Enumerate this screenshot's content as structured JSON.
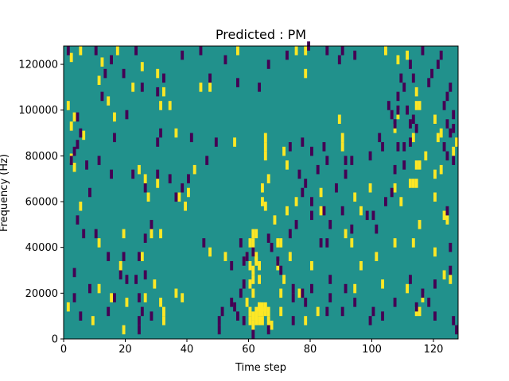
{
  "chart_data": {
    "type": "heatmap",
    "title": "Predicted : PM",
    "xlabel": "Time step",
    "ylabel": "Frequency (Hz)",
    "xlim": [
      0,
      128
    ],
    "ylim": [
      0,
      128000
    ],
    "xticks": [
      0,
      20,
      40,
      60,
      80,
      100,
      120
    ],
    "yticks": [
      0,
      20000,
      40000,
      60000,
      80000,
      100000,
      120000
    ],
    "grid": false,
    "colors": {
      "background": "#21918c",
      "high": "#fde725",
      "low": "#440154"
    },
    "cell_size": {
      "time": 1,
      "freq": 4000
    },
    "cells_high": [
      [
        2,
        121000
      ],
      [
        5,
        124000
      ],
      [
        12,
        119000
      ],
      [
        11,
        111000
      ],
      [
        1,
        100000
      ],
      [
        2,
        91000
      ],
      [
        3,
        95000
      ],
      [
        6,
        87000
      ],
      [
        2,
        77000
      ],
      [
        3,
        73000
      ],
      [
        5,
        56000
      ],
      [
        17,
        124000
      ],
      [
        14,
        102000
      ],
      [
        16,
        95000
      ],
      [
        22,
        108000
      ],
      [
        25,
        117000
      ],
      [
        30,
        114000
      ],
      [
        32,
        106000
      ],
      [
        31,
        100000
      ],
      [
        34,
        100000
      ],
      [
        36,
        88000
      ],
      [
        24,
        72000
      ],
      [
        26,
        68000
      ],
      [
        30,
        66000
      ],
      [
        39,
        56000
      ],
      [
        40,
        62000
      ],
      [
        42,
        72000
      ],
      [
        37,
        60000
      ],
      [
        27,
        60000
      ],
      [
        19,
        44000
      ],
      [
        28,
        44000
      ],
      [
        31,
        44000
      ],
      [
        25,
        34000
      ],
      [
        18,
        30000
      ],
      [
        11,
        40000
      ],
      [
        11,
        20000
      ],
      [
        15,
        16000
      ],
      [
        20,
        14000
      ],
      [
        26,
        16000
      ],
      [
        29,
        22000
      ],
      [
        31,
        14000
      ],
      [
        36,
        18000
      ],
      [
        38,
        16000
      ],
      [
        32,
        10000
      ],
      [
        32,
        6000
      ],
      [
        19,
        2000
      ],
      [
        9,
        6000
      ],
      [
        1,
        12000
      ],
      [
        44,
        108000
      ],
      [
        47,
        108000
      ],
      [
        56,
        124000
      ],
      [
        55,
        84000
      ],
      [
        47,
        36000
      ],
      [
        52,
        34000
      ],
      [
        59,
        34000
      ],
      [
        60,
        30000
      ],
      [
        62,
        34000
      ],
      [
        61,
        28000
      ],
      [
        60,
        22000
      ],
      [
        61,
        18000
      ],
      [
        59,
        14000
      ],
      [
        62,
        10000
      ],
      [
        63,
        12000
      ],
      [
        60,
        6000
      ],
      [
        62,
        6000
      ],
      [
        63,
        6000
      ],
      [
        64,
        6000
      ],
      [
        61,
        4000
      ],
      [
        61,
        8000
      ],
      [
        62,
        8000
      ],
      [
        60,
        10000
      ],
      [
        63,
        10000
      ],
      [
        64,
        10000
      ],
      [
        65,
        10000
      ],
      [
        66,
        10000
      ],
      [
        63,
        12000
      ],
      [
        64,
        12000
      ],
      [
        65,
        12000
      ],
      [
        60,
        40000
      ],
      [
        61,
        40000
      ],
      [
        61,
        44000
      ],
      [
        62,
        44000
      ],
      [
        61,
        36000
      ],
      [
        62,
        32000
      ],
      [
        63,
        24000
      ],
      [
        63,
        30000
      ],
      [
        61,
        24000
      ],
      [
        65,
        86000
      ],
      [
        65,
        82000
      ],
      [
        65,
        78000
      ],
      [
        66,
        68000
      ],
      [
        64,
        64000
      ],
      [
        64,
        58000
      ],
      [
        65,
        56000
      ],
      [
        68,
        50000
      ],
      [
        69,
        40000
      ],
      [
        70,
        40000
      ],
      [
        69,
        30000
      ],
      [
        71,
        24000
      ],
      [
        70,
        18000
      ],
      [
        70,
        10000
      ],
      [
        66,
        6000
      ],
      [
        67,
        4000
      ],
      [
        78,
        114000
      ],
      [
        78,
        124000
      ],
      [
        75,
        124000
      ],
      [
        76,
        18000
      ],
      [
        78,
        6000
      ],
      [
        82,
        10000
      ],
      [
        80,
        30000
      ],
      [
        73,
        34000
      ],
      [
        83,
        54000
      ],
      [
        72,
        54000
      ],
      [
        71,
        80000
      ],
      [
        72,
        74000
      ],
      [
        75,
        58000
      ],
      [
        83,
        62000
      ],
      [
        90,
        86000
      ],
      [
        89,
        94000
      ],
      [
        90,
        82000
      ],
      [
        94,
        60000
      ],
      [
        99,
        64000
      ],
      [
        91,
        44000
      ],
      [
        96,
        54000
      ],
      [
        93,
        40000
      ],
      [
        96,
        30000
      ],
      [
        94,
        20000
      ],
      [
        104,
        124000
      ],
      [
        107,
        64000
      ],
      [
        111,
        122000
      ],
      [
        108,
        120000
      ],
      [
        108,
        96000
      ],
      [
        107,
        90000
      ],
      [
        114,
        106000
      ],
      [
        114,
        100000
      ],
      [
        115,
        100000
      ],
      [
        114,
        74000
      ],
      [
        115,
        74000
      ],
      [
        113,
        66000
      ],
      [
        114,
        66000
      ],
      [
        117,
        78000
      ],
      [
        121,
        86000
      ],
      [
        120,
        94000
      ],
      [
        122,
        88000
      ],
      [
        122,
        72000
      ],
      [
        120,
        70000
      ],
      [
        120,
        60000
      ],
      [
        123,
        52000
      ],
      [
        113,
        40000
      ],
      [
        114,
        10000
      ],
      [
        115,
        10000
      ],
      [
        116,
        16000
      ],
      [
        111,
        20000
      ],
      [
        103,
        22000
      ],
      [
        101,
        34000
      ],
      [
        107,
        40000
      ],
      [
        109,
        58000
      ],
      [
        112,
        66000
      ],
      [
        113,
        86000
      ],
      [
        115,
        48000
      ],
      [
        120,
        36000
      ],
      [
        123,
        26000
      ],
      [
        125,
        24000
      ],
      [
        124,
        50000
      ],
      [
        126,
        80000
      ],
      [
        127,
        84000
      ]
    ],
    "cells_low": [
      [
        1,
        124000
      ],
      [
        10,
        124000
      ],
      [
        15,
        120000
      ],
      [
        12,
        104000
      ],
      [
        4,
        95000
      ],
      [
        5,
        88000
      ],
      [
        4,
        83000
      ],
      [
        3,
        80000
      ],
      [
        2,
        76000
      ],
      [
        7,
        74000
      ],
      [
        3,
        27000
      ],
      [
        3,
        16000
      ],
      [
        5,
        8000
      ],
      [
        8,
        20000
      ],
      [
        14,
        10000
      ],
      [
        16,
        16000
      ],
      [
        20,
        24000
      ],
      [
        24,
        16000
      ],
      [
        25,
        10000
      ],
      [
        28,
        8000
      ],
      [
        24,
        6000
      ],
      [
        24,
        2000
      ],
      [
        19,
        114000
      ],
      [
        23,
        124000
      ],
      [
        25,
        108000
      ],
      [
        32,
        112000
      ],
      [
        30,
        106000
      ],
      [
        31,
        88000
      ],
      [
        30,
        84000
      ],
      [
        22,
        70000
      ],
      [
        26,
        64000
      ],
      [
        30,
        70000
      ],
      [
        34,
        68000
      ],
      [
        28,
        48000
      ],
      [
        26,
        42000
      ],
      [
        24,
        34000
      ],
      [
        23,
        24000
      ],
      [
        26,
        26000
      ],
      [
        19,
        34000
      ],
      [
        13,
        114000
      ],
      [
        20,
        96000
      ],
      [
        16,
        86000
      ],
      [
        11,
        76000
      ],
      [
        15,
        70000
      ],
      [
        8,
        62000
      ],
      [
        4,
        50000
      ],
      [
        6,
        44000
      ],
      [
        10,
        44000
      ],
      [
        14,
        34000
      ],
      [
        18,
        26000
      ],
      [
        38,
        122000
      ],
      [
        44,
        124000
      ],
      [
        47,
        112000
      ],
      [
        52,
        120000
      ],
      [
        56,
        110000
      ],
      [
        41,
        86000
      ],
      [
        46,
        76000
      ],
      [
        49,
        84000
      ],
      [
        36,
        60000
      ],
      [
        38,
        64000
      ],
      [
        40,
        68000
      ],
      [
        45,
        40000
      ],
      [
        54,
        30000
      ],
      [
        57,
        18000
      ],
      [
        50,
        6000
      ],
      [
        58,
        22000
      ],
      [
        54,
        14000
      ],
      [
        55,
        12000
      ],
      [
        56,
        8000
      ],
      [
        51,
        10000
      ],
      [
        50,
        2000
      ],
      [
        58,
        32000
      ],
      [
        57,
        40000
      ],
      [
        59,
        34000
      ],
      [
        61,
        36000
      ],
      [
        63,
        108000
      ],
      [
        66,
        118000
      ],
      [
        72,
        122000
      ],
      [
        79,
        126000
      ],
      [
        85,
        124000
      ],
      [
        90,
        124000
      ],
      [
        89,
        120000
      ],
      [
        94,
        122000
      ],
      [
        73,
        82000
      ],
      [
        77,
        84000
      ],
      [
        80,
        80000
      ],
      [
        84,
        82000
      ],
      [
        85,
        76000
      ],
      [
        91,
        76000
      ],
      [
        93,
        76000
      ],
      [
        91,
        70000
      ],
      [
        88,
        64000
      ],
      [
        80,
        58000
      ],
      [
        80,
        52000
      ],
      [
        84,
        54000
      ],
      [
        90,
        54000
      ],
      [
        86,
        48000
      ],
      [
        83,
        40000
      ],
      [
        85,
        40000
      ],
      [
        93,
        46000
      ],
      [
        98,
        52000
      ],
      [
        100,
        52000
      ],
      [
        101,
        46000
      ],
      [
        104,
        58000
      ],
      [
        106,
        62000
      ],
      [
        107,
        72000
      ],
      [
        110,
        74000
      ],
      [
        113,
        94000
      ],
      [
        114,
        90000
      ],
      [
        112,
        84000
      ],
      [
        110,
        82000
      ],
      [
        105,
        100000
      ],
      [
        106,
        96000
      ],
      [
        109,
        112000
      ],
      [
        111,
        98000
      ],
      [
        112,
        92000
      ],
      [
        112,
        118000
      ],
      [
        113,
        112000
      ],
      [
        116,
        124000
      ],
      [
        124,
        92000
      ],
      [
        125,
        88000
      ],
      [
        124,
        78000
      ],
      [
        126,
        76000
      ],
      [
        124,
        54000
      ],
      [
        125,
        38000
      ],
      [
        125,
        28000
      ],
      [
        120,
        22000
      ],
      [
        118,
        14000
      ],
      [
        116,
        18000
      ],
      [
        112,
        24000
      ],
      [
        103,
        8000
      ],
      [
        100,
        10000
      ],
      [
        94,
        14000
      ],
      [
        91,
        20000
      ],
      [
        86,
        24000
      ],
      [
        80,
        20000
      ],
      [
        78,
        14000
      ],
      [
        74,
        16000
      ],
      [
        74,
        20000
      ],
      [
        70,
        28000
      ],
      [
        69,
        32000
      ],
      [
        67,
        38000
      ],
      [
        66,
        42000
      ],
      [
        73,
        44000
      ],
      [
        75,
        48000
      ],
      [
        77,
        62000
      ],
      [
        78,
        66000
      ],
      [
        76,
        70000
      ],
      [
        82,
        72000
      ],
      [
        99,
        78000
      ],
      [
        103,
        82000
      ],
      [
        102,
        86000
      ],
      [
        108,
        82000
      ],
      [
        107,
        92000
      ],
      [
        108,
        98000
      ],
      [
        108,
        104000
      ],
      [
        110,
        108000
      ],
      [
        118,
        110000
      ],
      [
        119,
        114000
      ],
      [
        121,
        118000
      ],
      [
        122,
        122000
      ],
      [
        125,
        108000
      ],
      [
        124,
        104000
      ],
      [
        123,
        100000
      ],
      [
        126,
        96000
      ],
      [
        126,
        90000
      ],
      [
        123,
        82000
      ],
      [
        127,
        2000
      ],
      [
        126,
        6000
      ],
      [
        120,
        8000
      ],
      [
        114,
        12000
      ],
      [
        107,
        14000
      ],
      [
        99,
        6000
      ],
      [
        90,
        10000
      ],
      [
        85,
        10000
      ],
      [
        86,
        16000
      ],
      [
        77,
        18000
      ],
      [
        74,
        6000
      ],
      [
        66,
        2000
      ],
      [
        61,
        0
      ],
      [
        58,
        6000
      ]
    ]
  }
}
